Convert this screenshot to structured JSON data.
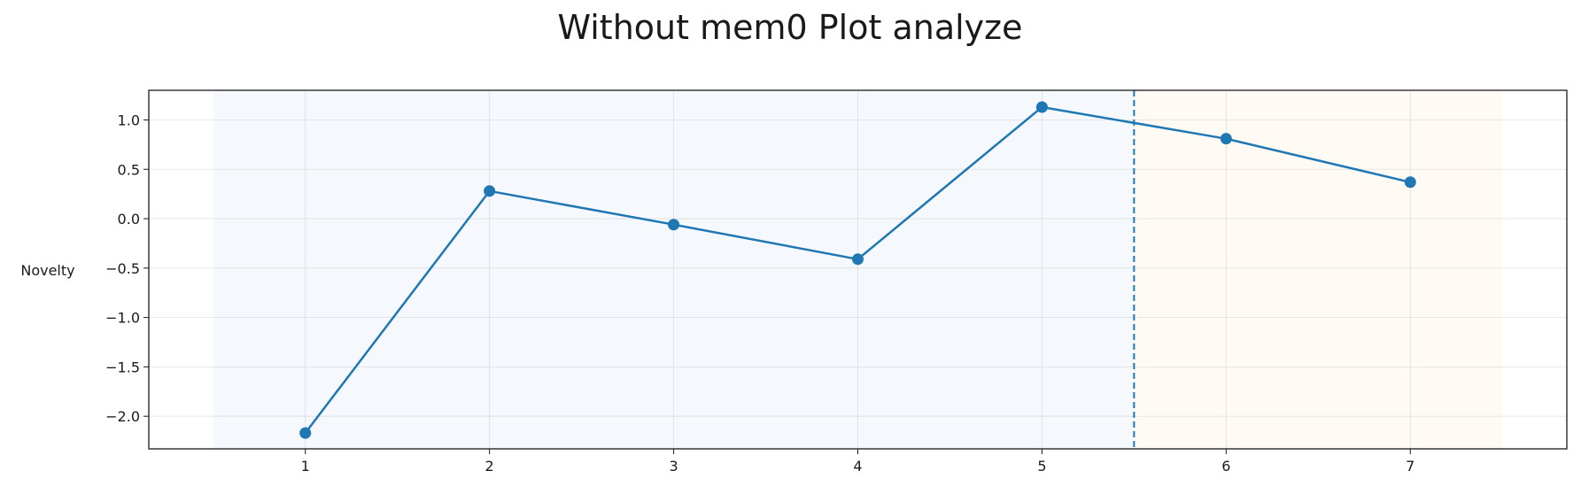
{
  "chart_data": {
    "type": "line",
    "title": "Without mem0 Plot analyze",
    "xlabel": "",
    "ylabel": "Novelty",
    "x": [
      1,
      2,
      3,
      4,
      5,
      6,
      7
    ],
    "series": [
      {
        "values": [
          -2.17,
          0.28,
          -0.06,
          -0.41,
          1.13,
          0.81,
          0.37
        ],
        "color": "#1f77b4"
      }
    ],
    "xlim": [
      0.15,
      7.85
    ],
    "ylim": [
      -2.33,
      1.3
    ],
    "xticks": [
      1,
      2,
      3,
      4,
      5,
      6,
      7
    ],
    "yticks": [
      1.0,
      0.5,
      0.0,
      -0.5,
      -1.0,
      -1.5,
      -2.0
    ],
    "ytick_labels": [
      "1.0",
      "0.5",
      "0.0",
      "−0.5",
      "−1.0",
      "−1.5",
      "−2.0"
    ],
    "grid": true,
    "regions": [
      {
        "x0": 0.5,
        "x1": 5.5,
        "color": "#f5f8fc"
      },
      {
        "x0": 5.5,
        "x1": 7.5,
        "color": "#fffaf4"
      }
    ],
    "vline": {
      "x": 5.5,
      "color": "#1f77b4",
      "style": "dashed"
    }
  }
}
